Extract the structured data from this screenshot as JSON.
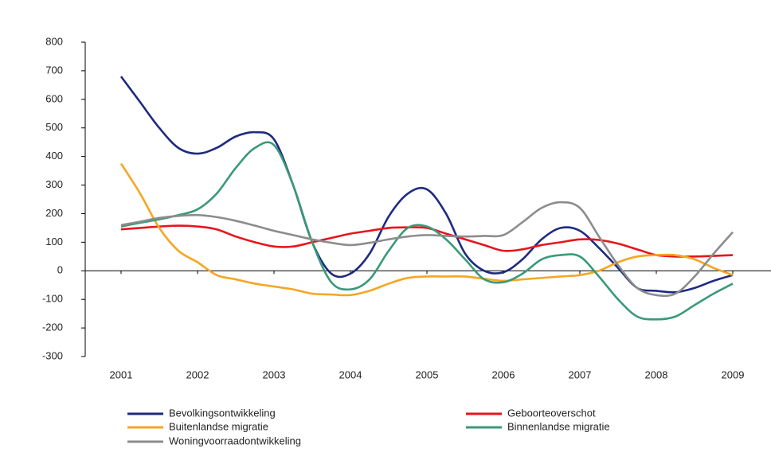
{
  "chart_data": {
    "type": "line",
    "x": [
      2001,
      2001.25,
      2001.5,
      2001.75,
      2002,
      2002.25,
      2002.5,
      2002.75,
      2003,
      2003.25,
      2003.5,
      2003.75,
      2004,
      2004.25,
      2004.5,
      2004.75,
      2005,
      2005.25,
      2005.5,
      2005.75,
      2006,
      2006.25,
      2006.5,
      2006.75,
      2007,
      2007.25,
      2007.5,
      2007.75,
      2008,
      2008.25,
      2008.5,
      2008.75,
      2009
    ],
    "xlim": [
      2000.5,
      2009.5
    ],
    "xticks": [
      2001,
      2002,
      2003,
      2004,
      2005,
      2006,
      2007,
      2008,
      2009
    ],
    "ylim": [
      -300,
      800
    ],
    "yticks": [
      -300,
      -200,
      -100,
      0,
      100,
      200,
      300,
      400,
      500,
      600,
      700,
      800
    ],
    "grid": false,
    "legend": "bottom",
    "series": [
      {
        "name": "Bevolkingsontwikkeling",
        "color": "#1f2a80",
        "values": [
          680,
          590,
          500,
          430,
          410,
          430,
          470,
          485,
          460,
          300,
          100,
          -10,
          -10,
          60,
          190,
          270,
          285,
          200,
          60,
          0,
          -5,
          40,
          110,
          150,
          140,
          80,
          10,
          -60,
          -70,
          -75,
          -60,
          -35,
          -15
        ]
      },
      {
        "name": "Geboorteoverschot",
        "color": "#e8141c",
        "values": [
          145,
          150,
          155,
          158,
          155,
          145,
          120,
          100,
          85,
          85,
          100,
          115,
          130,
          140,
          150,
          152,
          150,
          130,
          110,
          90,
          70,
          75,
          90,
          100,
          110,
          108,
          95,
          75,
          55,
          50,
          50,
          52,
          55
        ]
      },
      {
        "name": "Buitenlandse migratie",
        "color": "#f5a623",
        "values": [
          375,
          270,
          150,
          70,
          30,
          -15,
          -30,
          -45,
          -55,
          -65,
          -80,
          -83,
          -85,
          -70,
          -45,
          -25,
          -20,
          -20,
          -20,
          -28,
          -35,
          -30,
          -25,
          -20,
          -15,
          0,
          30,
          50,
          55,
          55,
          40,
          10,
          -15
        ]
      },
      {
        "name": "Binnenlandse migratie",
        "color": "#3a9a78",
        "values": [
          155,
          168,
          180,
          195,
          215,
          270,
          360,
          430,
          440,
          300,
          100,
          -40,
          -65,
          -30,
          70,
          150,
          155,
          110,
          40,
          -30,
          -40,
          -10,
          40,
          55,
          50,
          -20,
          -100,
          -160,
          -170,
          -160,
          -120,
          -80,
          -45
        ]
      },
      {
        "name": "Woningvoorraadontwikkeling",
        "color": "#8c8c8c",
        "values": [
          160,
          172,
          185,
          192,
          195,
          188,
          175,
          158,
          140,
          125,
          110,
          98,
          90,
          98,
          110,
          120,
          125,
          122,
          120,
          122,
          125,
          170,
          220,
          240,
          220,
          120,
          20,
          -60,
          -85,
          -80,
          -20,
          60,
          135
        ]
      }
    ]
  }
}
